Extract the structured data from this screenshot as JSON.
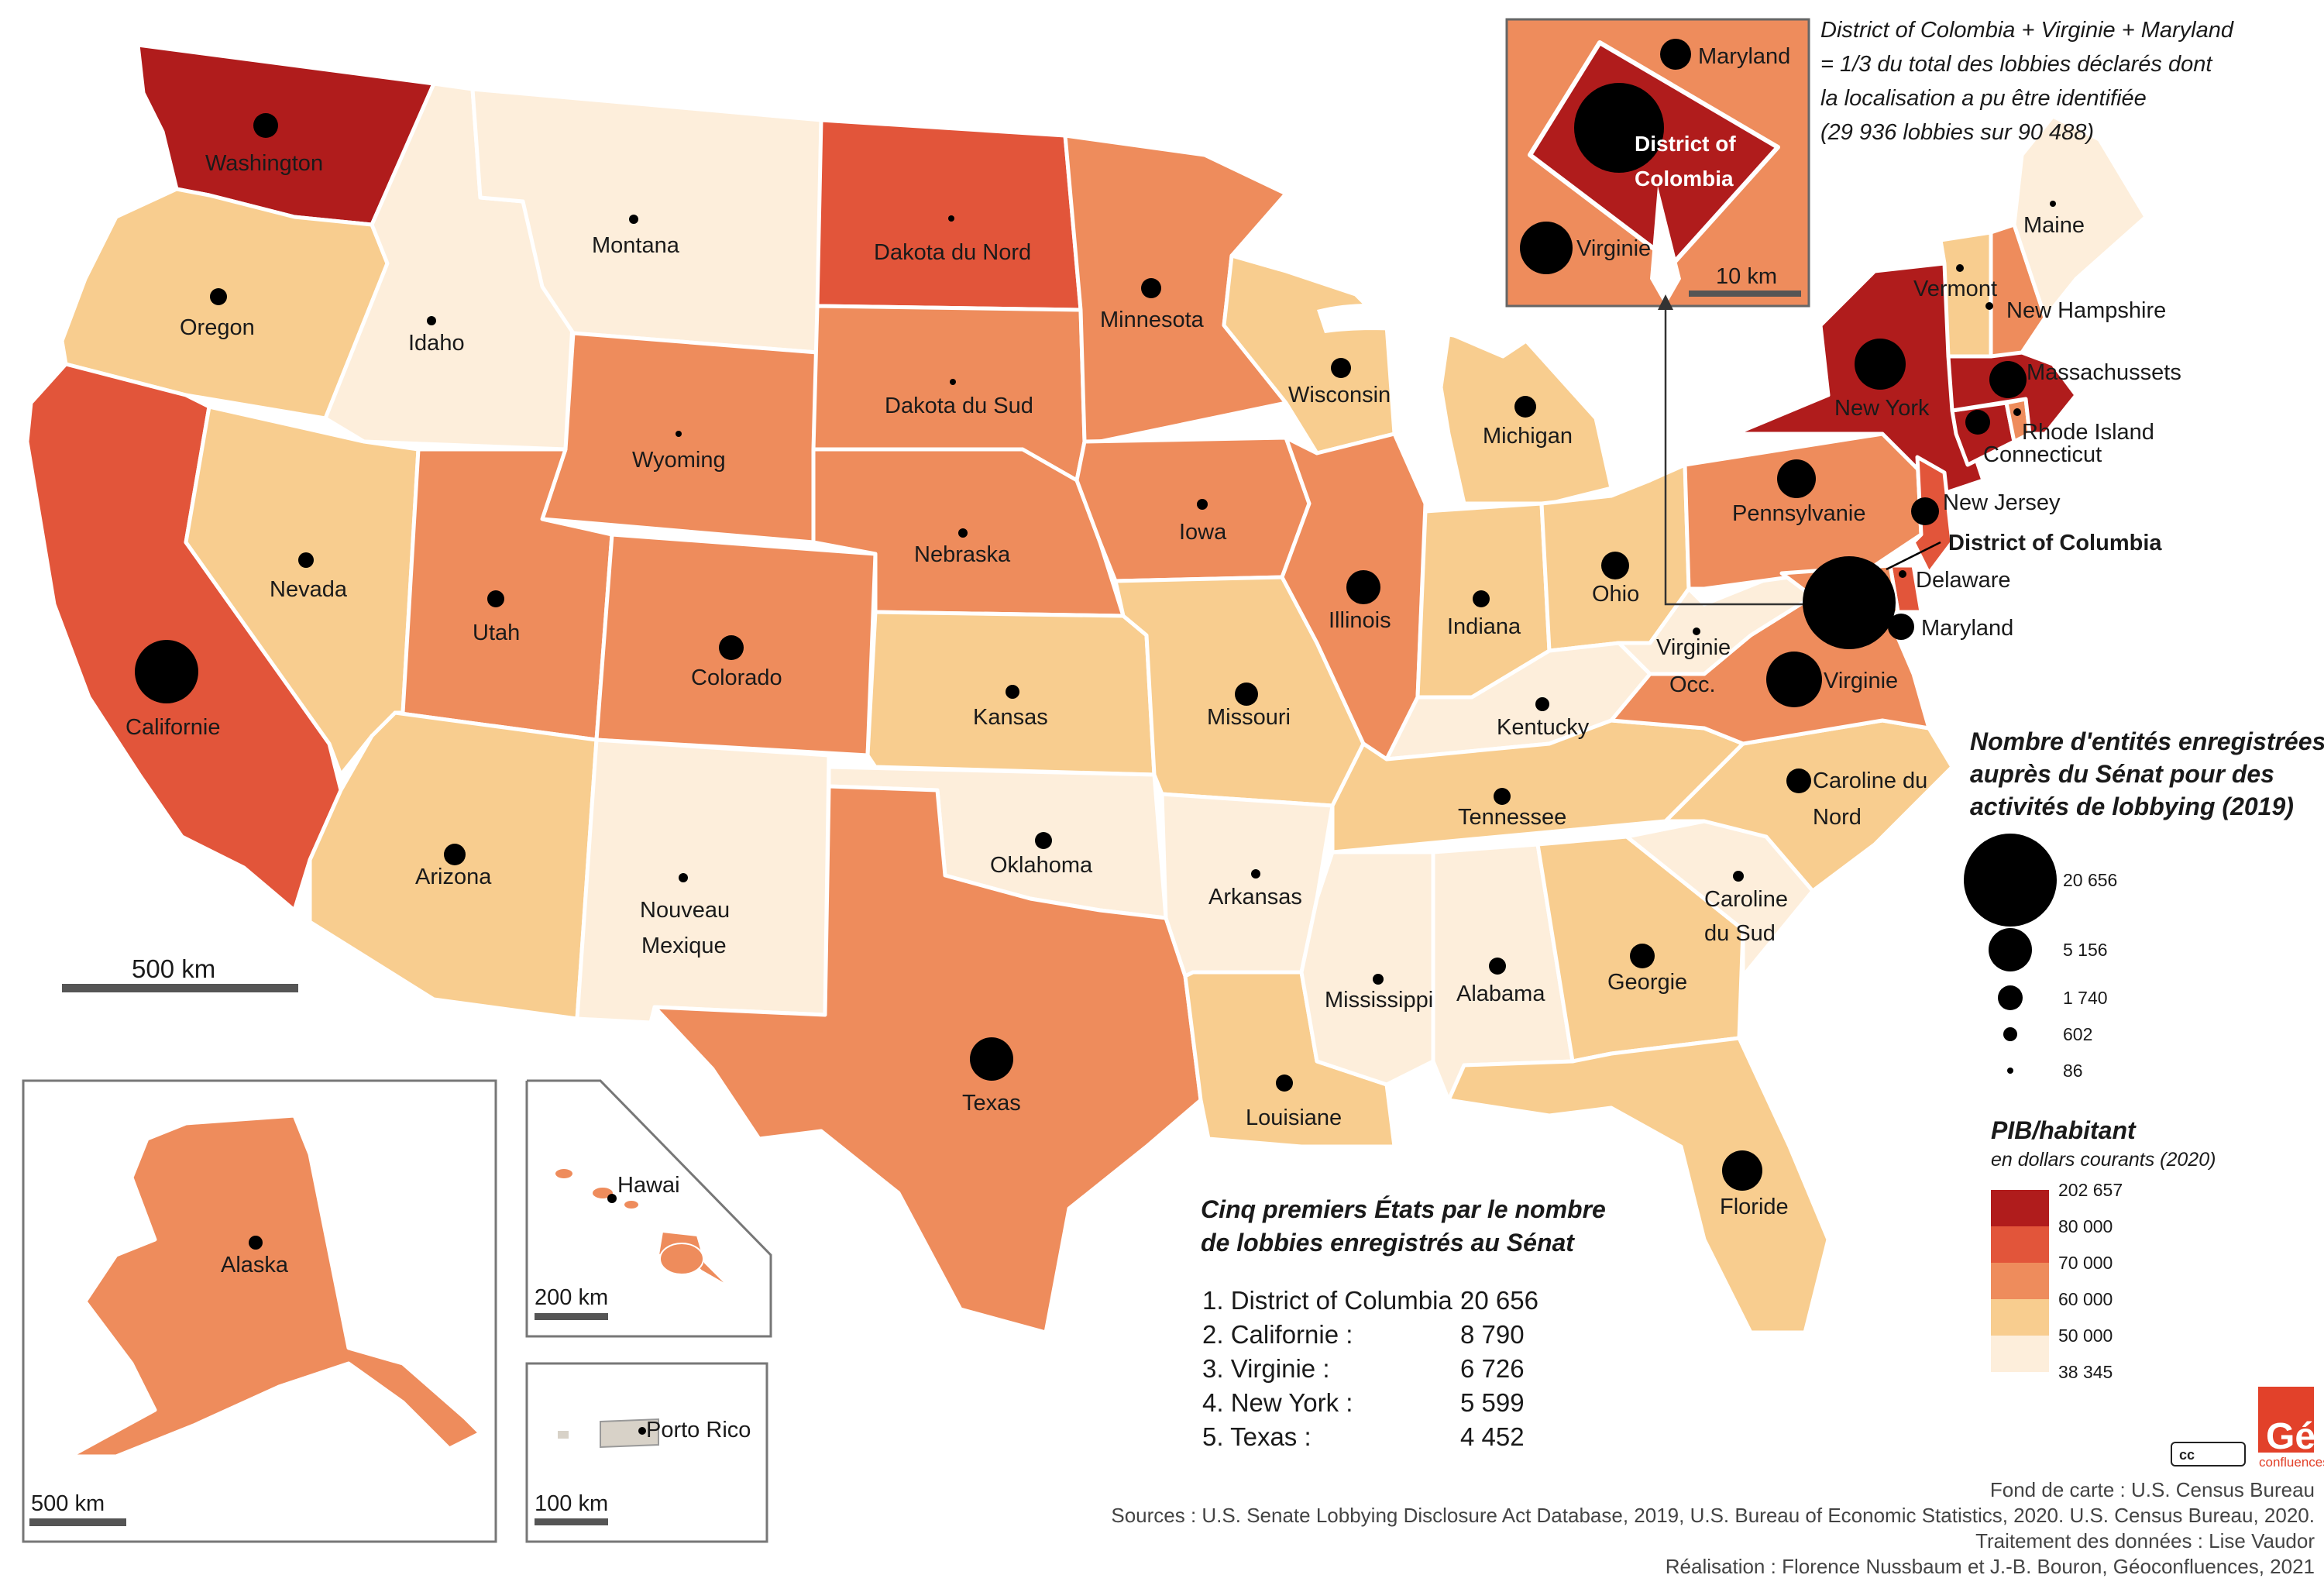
{
  "colors": {
    "c1": "#b01c1c",
    "c2": "#e2553a",
    "c3": "#ee8c5c",
    "c4": "#f8cd8f",
    "c5": "#fdeedb",
    "dot": "#000000",
    "territory_grey": "#d8d2c8"
  },
  "states": [
    {
      "id": "washington",
      "name": "Washington",
      "class": "c1"
    },
    {
      "id": "oregon",
      "name": "Oregon",
      "class": "c4"
    },
    {
      "id": "californie",
      "name": "Californie",
      "class": "c2"
    },
    {
      "id": "idaho",
      "name": "Idaho",
      "class": "c5"
    },
    {
      "id": "nevada",
      "name": "Nevada",
      "class": "c4"
    },
    {
      "id": "montana",
      "name": "Montana",
      "class": "c5"
    },
    {
      "id": "wyoming",
      "name": "Wyoming",
      "class": "c3"
    },
    {
      "id": "utah",
      "name": "Utah",
      "class": "c3"
    },
    {
      "id": "arizona",
      "name": "Arizona",
      "class": "c4"
    },
    {
      "id": "colorado",
      "name": "Colorado",
      "class": "c3"
    },
    {
      "id": "nouveau_mexique",
      "name": "Nouveau Mexique",
      "class": "c5"
    },
    {
      "id": "dakota_nord",
      "name": "Dakota du Nord",
      "class": "c2"
    },
    {
      "id": "dakota_sud",
      "name": "Dakota du Sud",
      "class": "c3"
    },
    {
      "id": "nebraska",
      "name": "Nebraska",
      "class": "c3"
    },
    {
      "id": "kansas",
      "name": "Kansas",
      "class": "c4"
    },
    {
      "id": "oklahoma",
      "name": "Oklahoma",
      "class": "c5"
    },
    {
      "id": "texas",
      "name": "Texas",
      "class": "c3"
    },
    {
      "id": "minnesota",
      "name": "Minnesota",
      "class": "c3"
    },
    {
      "id": "iowa",
      "name": "Iowa",
      "class": "c3"
    },
    {
      "id": "missouri",
      "name": "Missouri",
      "class": "c4"
    },
    {
      "id": "arkansas",
      "name": "Arkansas",
      "class": "c5"
    },
    {
      "id": "louisiane",
      "name": "Louisiane",
      "class": "c4"
    },
    {
      "id": "wisconsin",
      "name": "Wisconsin",
      "class": "c4"
    },
    {
      "id": "illinois",
      "name": "Illinois",
      "class": "c3"
    },
    {
      "id": "michigan",
      "name": "Michigan",
      "class": "c4"
    },
    {
      "id": "indiana",
      "name": "Indiana",
      "class": "c4"
    },
    {
      "id": "ohio",
      "name": "Ohio",
      "class": "c4"
    },
    {
      "id": "kentucky",
      "name": "Kentucky",
      "class": "c5"
    },
    {
      "id": "tennessee",
      "name": "Tennessee",
      "class": "c4"
    },
    {
      "id": "mississippi",
      "name": "Mississippi",
      "class": "c5"
    },
    {
      "id": "alabama",
      "name": "Alabama",
      "class": "c5"
    },
    {
      "id": "georgie",
      "name": "Georgie",
      "class": "c4"
    },
    {
      "id": "floride",
      "name": "Floride",
      "class": "c4"
    },
    {
      "id": "caroline_sud",
      "name": "Caroline du Sud",
      "class": "c5"
    },
    {
      "id": "caroline_nord",
      "name": "Caroline du Nord",
      "class": "c4"
    },
    {
      "id": "virginie",
      "name": "Virginie",
      "class": "c3"
    },
    {
      "id": "virginie_occ",
      "name": "Virginie Occ.",
      "class": "c5"
    },
    {
      "id": "pennsylvanie",
      "name": "Pennsylvanie",
      "class": "c3"
    },
    {
      "id": "new_york",
      "name": "New York",
      "class": "c1"
    },
    {
      "id": "new_jersey",
      "name": "New Jersey",
      "class": "c2"
    },
    {
      "id": "delaware",
      "name": "Delaware",
      "class": "c2"
    },
    {
      "id": "maryland",
      "name": "Maryland",
      "class": "c3"
    },
    {
      "id": "connecticut",
      "name": "Connecticut",
      "class": "c1"
    },
    {
      "id": "rhode_island",
      "name": "Rhode Island",
      "class": "c3"
    },
    {
      "id": "massachussets",
      "name": "Massachussets",
      "class": "c1"
    },
    {
      "id": "vermont",
      "name": "Vermont",
      "class": "c4"
    },
    {
      "id": "new_hampshire",
      "name": "New Hampshire",
      "class": "c3"
    },
    {
      "id": "maine",
      "name": "Maine",
      "class": "c5"
    },
    {
      "id": "alaska",
      "name": "Alaska",
      "class": "c3"
    },
    {
      "id": "hawai",
      "name": "Hawai",
      "class": "c3"
    },
    {
      "id": "porto_rico",
      "name": "Porto Rico",
      "class": "grey"
    }
  ],
  "labels": {
    "dc": "District of Columbia"
  },
  "inset_dc": {
    "note_line1": "District of Colombia + Virginie + Maryland",
    "note_line2": "= 1/3 du total des lobbies déclarés dont",
    "note_line3": "la localisation a pu être identifiée",
    "note_line4": "(29 936 lobbies sur 90 488)",
    "maryland": "Maryland",
    "virginie": "Virginie",
    "dc_line1": "District of",
    "dc_line2": "Colombia",
    "scale": "10 km"
  },
  "scales": {
    "main": "500 km",
    "alaska": "500 km",
    "hawai": "200 km",
    "porto_rico": "100 km"
  },
  "legend_size": {
    "title_line1": "Nombre d'entités enregistrées",
    "title_line2": "auprès du Sénat pour des",
    "title_line3": "activités de lobbying (2019)",
    "items": [
      "20 656",
      "5 156",
      "1 740",
      "602",
      "86"
    ]
  },
  "legend_gdp": {
    "title": "PIB/habitant",
    "subtitle": "en dollars courants (2020)",
    "breaks": [
      "202 657",
      "80 000",
      "70 000",
      "60 000",
      "50 000",
      "38 345"
    ]
  },
  "top5": {
    "title_line1": "Cinq premiers États par le nombre",
    "title_line2": "de lobbies enregistrés au Sénat",
    "rows": [
      {
        "label": "1. District of Columbia :",
        "value": "20 656"
      },
      {
        "label": "2. Californie :",
        "value": "8 790"
      },
      {
        "label": "3. Virginie :",
        "value": "6 726"
      },
      {
        "label": "4. New York :",
        "value": "5 599"
      },
      {
        "label": "5. Texas :",
        "value": "4 452"
      }
    ]
  },
  "credits": {
    "line1": "Fond de carte : U.S. Census Bureau",
    "line2": "Sources : U.S. Senate Lobbying Disclosure Act Database, 2019, U.S. Bureau of Economic Statistics, 2020. U.S. Census Bureau, 2020.",
    "line3": "Traitement des données : Lise Vaudor",
    "line4": "Réalisation : Florence Nussbaum et J.-B. Bouron, Géoconfluences, 2021",
    "logo_letters": "Géo",
    "logo_sub": "confluences",
    "cc": "cc"
  }
}
